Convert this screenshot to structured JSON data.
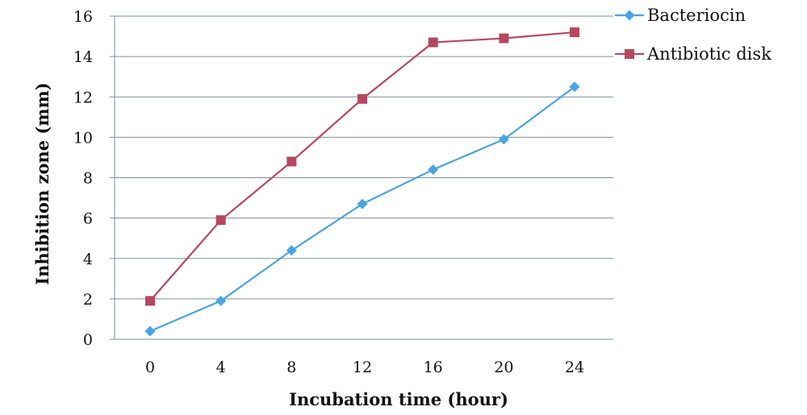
{
  "chart_data": {
    "type": "line",
    "x": [
      0,
      4,
      8,
      12,
      16,
      20,
      24
    ],
    "x_tick_labels": [
      "0",
      "4",
      "8",
      "12",
      "16",
      "20",
      "24"
    ],
    "series": [
      {
        "name": "Bacteriocin",
        "color": "#4BA3E3",
        "marker": "diamond",
        "values": [
          0.4,
          1.9,
          4.4,
          6.7,
          8.4,
          9.9,
          12.5
        ]
      },
      {
        "name": "Antibiotic disk",
        "color": "#B5485E",
        "marker": "square",
        "values": [
          1.9,
          5.9,
          8.8,
          11.9,
          14.7,
          14.9,
          15.2
        ]
      }
    ],
    "xlabel": "Incubation time (hour)",
    "ylabel": "Inhibition zone (mm)",
    "ylim": [
      0,
      16
    ],
    "y_ticks": [
      0,
      2,
      4,
      6,
      8,
      10,
      12,
      14,
      16
    ],
    "grid": "horizontal",
    "legend_position": "top-right"
  }
}
